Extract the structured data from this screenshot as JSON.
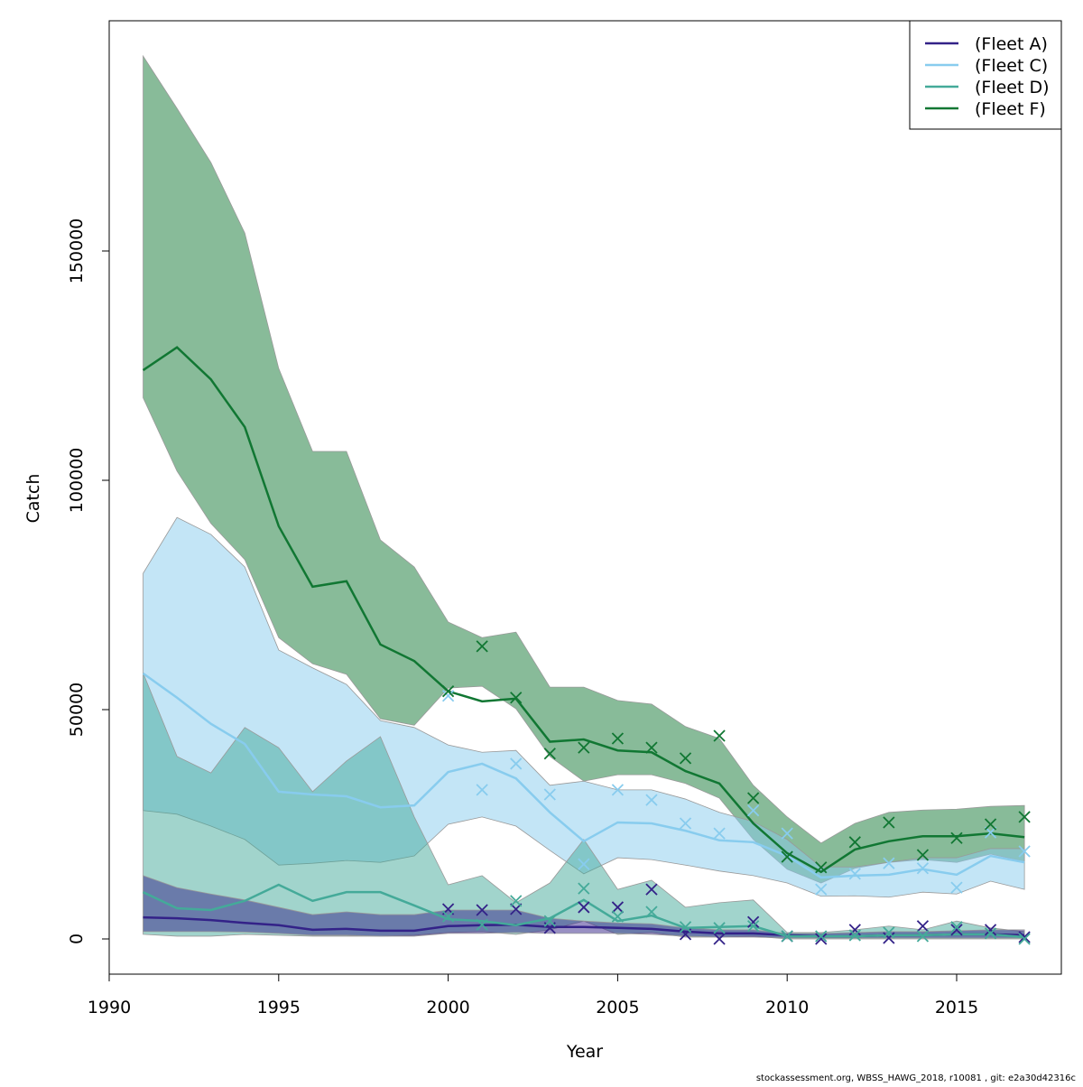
{
  "chart_data": {
    "type": "line",
    "title": "",
    "xlabel": "Year",
    "ylabel": "Catch",
    "xlim": [
      1990,
      2018
    ],
    "ylim": [
      -8000,
      200000
    ],
    "xticks": [
      1990,
      1995,
      2000,
      2005,
      2010,
      2015
    ],
    "yticks": [
      0,
      50000,
      100000,
      150000
    ],
    "ytick_labels": [
      "0",
      "50000",
      "100000",
      "150000"
    ],
    "xtick_labels": [
      "1990",
      "1995",
      "2000",
      "2005",
      "2010",
      "2015"
    ],
    "legend_position": "top-right",
    "grid": false,
    "years": [
      1991,
      1992,
      1993,
      1994,
      1995,
      1996,
      1997,
      1998,
      1999,
      2000,
      2001,
      2002,
      2003,
      2004,
      2005,
      2006,
      2007,
      2008,
      2009,
      2010,
      2011,
      2012,
      2013,
      2014,
      2015,
      2016,
      2017
    ],
    "obs_years": [
      2000,
      2001,
      2002,
      2003,
      2004,
      2005,
      2006,
      2007,
      2008,
      2009,
      2010,
      2011,
      2012,
      2013,
      2014,
      2015,
      2016,
      2017
    ],
    "series": [
      {
        "name": "(Fleet A)",
        "color": "#332288",
        "estimate": [
          4700,
          4500,
          4100,
          3500,
          3000,
          2000,
          2200,
          1800,
          1800,
          2800,
          3000,
          3100,
          2600,
          2600,
          2400,
          2200,
          1600,
          1200,
          1200,
          800,
          600,
          600,
          800,
          800,
          1000,
          1000,
          800
        ],
        "upper": [
          13800,
          11200,
          9800,
          8500,
          6900,
          5300,
          5900,
          5300,
          5300,
          6300,
          6300,
          6300,
          4500,
          3900,
          3500,
          3300,
          2400,
          2000,
          2000,
          1200,
          1200,
          1400,
          1600,
          1600,
          1800,
          2000,
          2000
        ],
        "lower": [
          1600,
          1600,
          1600,
          1500,
          1200,
          800,
          800,
          600,
          600,
          1200,
          1200,
          1400,
          1200,
          1200,
          1200,
          1000,
          600,
          400,
          400,
          200,
          200,
          200,
          200,
          200,
          200,
          200,
          200
        ],
        "observed": [
          6500,
          6300,
          6500,
          2400,
          6900,
          6900,
          10800,
          1000,
          0,
          3700,
          600,
          0,
          2000,
          200,
          2800,
          2000,
          2000,
          400
        ]
      },
      {
        "name": "(Fleet C)",
        "color": "#88ccee",
        "estimate": [
          57900,
          52600,
          46900,
          42500,
          32100,
          31500,
          31100,
          28700,
          29100,
          36400,
          38200,
          35000,
          27600,
          21300,
          25400,
          25200,
          23600,
          21500,
          21100,
          18100,
          13400,
          13800,
          14000,
          15200,
          14000,
          18100,
          16700
        ],
        "upper": [
          79700,
          91900,
          88200,
          81100,
          63000,
          59100,
          55500,
          47600,
          46100,
          42300,
          40700,
          41100,
          33500,
          34400,
          32500,
          32500,
          30500,
          27600,
          25600,
          21700,
          15700,
          15700,
          16700,
          17700,
          17700,
          19700,
          19700
        ],
        "lower": [
          28000,
          27200,
          24600,
          21700,
          16100,
          16500,
          17100,
          16700,
          18100,
          25000,
          26600,
          24600,
          19300,
          14200,
          17700,
          17300,
          16100,
          14800,
          13800,
          12200,
          9300,
          9400,
          9100,
          10200,
          9800,
          12600,
          10800
        ],
        "observed": [
          53000,
          32500,
          38200,
          31500,
          16300,
          32500,
          30300,
          25200,
          23000,
          28000,
          23000,
          10800,
          14200,
          16500,
          15400,
          11200,
          23200,
          19100
        ]
      },
      {
        "name": "(Fleet D)",
        "color": "#44aa99",
        "estimate": [
          10200,
          6700,
          6300,
          8300,
          11800,
          8300,
          10200,
          10200,
          7300,
          4300,
          3900,
          3000,
          4500,
          8500,
          3900,
          5100,
          2400,
          2600,
          2800,
          600,
          600,
          600,
          800,
          800,
          1000,
          1000,
          400
        ],
        "upper": [
          58000,
          39800,
          36200,
          46100,
          41700,
          32100,
          38800,
          44100,
          26600,
          11800,
          13800,
          7900,
          12200,
          21700,
          10800,
          12800,
          6900,
          7900,
          8500,
          1400,
          1400,
          2000,
          2800,
          2000,
          3900,
          2400,
          1600
        ],
        "lower": [
          1000,
          600,
          600,
          1000,
          800,
          600,
          600,
          600,
          800,
          1400,
          1600,
          1000,
          2000,
          3900,
          1000,
          1400,
          400,
          400,
          600,
          0,
          0,
          0,
          0,
          0,
          0,
          0,
          0
        ],
        "observed": [
          4900,
          3100,
          8300,
          3900,
          11000,
          4900,
          5900,
          2600,
          2400,
          2800,
          600,
          600,
          800,
          1400,
          600,
          2600,
          1200,
          0
        ]
      },
      {
        "name": "(Fleet F)",
        "color": "#117733",
        "estimate": [
          124000,
          129000,
          122000,
          111600,
          90000,
          76800,
          78000,
          64200,
          60600,
          54000,
          51800,
          52400,
          43000,
          43500,
          41100,
          40700,
          36600,
          33900,
          25200,
          18700,
          14600,
          19500,
          21300,
          22400,
          22400,
          23000,
          22200
        ],
        "upper": [
          192500,
          181100,
          169300,
          153900,
          124400,
          106300,
          106300,
          87000,
          81100,
          69100,
          65700,
          66900,
          54900,
          54900,
          52000,
          51200,
          46300,
          43700,
          33500,
          26600,
          20900,
          25200,
          27600,
          28100,
          28300,
          28900,
          29100
        ],
        "lower": [
          118000,
          102000,
          90600,
          82700,
          65700,
          60000,
          57700,
          48000,
          46600,
          54700,
          55100,
          50200,
          39800,
          34400,
          35800,
          35800,
          33900,
          30700,
          21700,
          15200,
          12200,
          15400,
          16700,
          17300,
          16700,
          18500,
          16900
        ],
        "observed": [
          54000,
          63800,
          52600,
          40400,
          41700,
          43700,
          41700,
          39400,
          44300,
          30700,
          17900,
          15600,
          21100,
          25400,
          18300,
          22000,
          25000,
          26600
        ]
      }
    ]
  },
  "footer": "stockassessment.org, WBSS_HAWG_2018, r10081 , git: e2a30d42316c"
}
